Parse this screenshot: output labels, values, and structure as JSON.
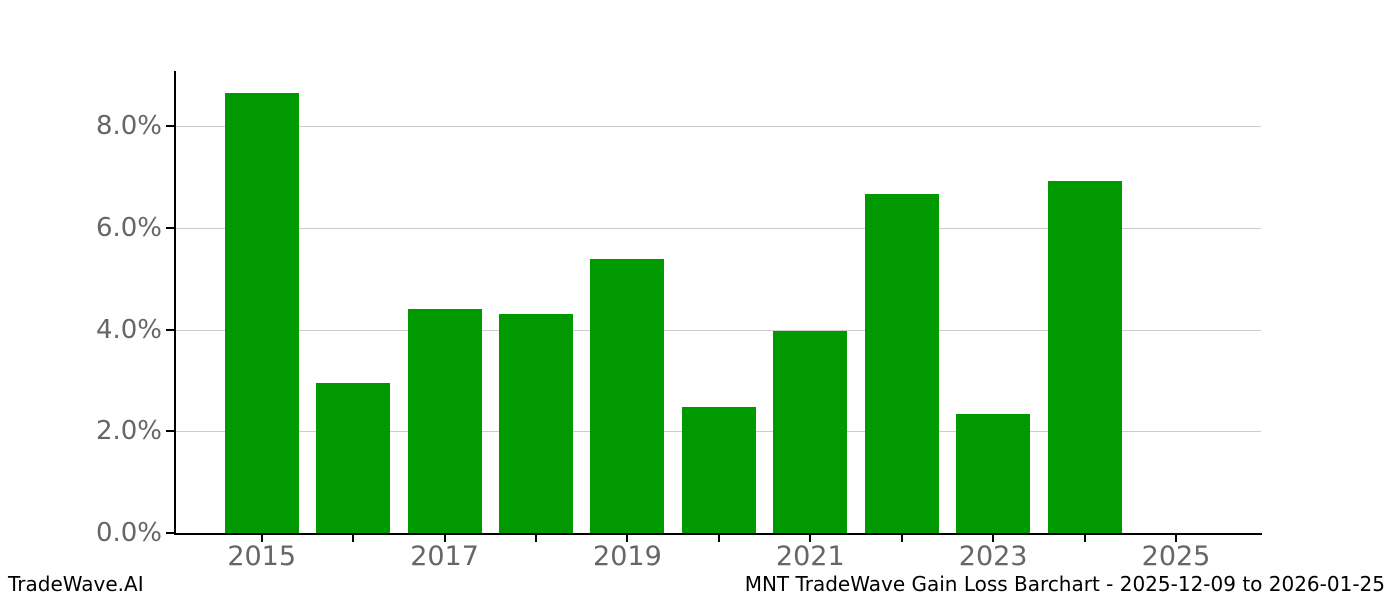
{
  "watermark": "TradeWave.AI",
  "footer_title": "MNT TradeWave Gain Loss Barchart - 2025-12-09 to 2026-01-25",
  "colors": {
    "bar": "#009900",
    "grid": "#cccccc",
    "axis": "#000000",
    "tick_label": "#666666",
    "text": "#000000",
    "background": "#ffffff"
  },
  "chart_data": {
    "type": "bar",
    "title": "MNT TradeWave Gain Loss Barchart - 2025-12-09 to 2026-01-25",
    "xlabel": "",
    "ylabel": "",
    "unit": "%",
    "categories": [
      "2015",
      "2016",
      "2017",
      "2018",
      "2019",
      "2020",
      "2021",
      "2022",
      "2023",
      "2024",
      "2025"
    ],
    "values": [
      8.65,
      2.96,
      4.41,
      4.31,
      5.39,
      2.47,
      3.97,
      6.67,
      2.35,
      6.93,
      null
    ],
    "x_tick_labels_shown": [
      "2015",
      "2017",
      "2019",
      "2021",
      "2023",
      "2025"
    ],
    "y_ticks": [
      {
        "value": 0,
        "label": "0.0%"
      },
      {
        "value": 2,
        "label": "2.0%"
      },
      {
        "value": 4,
        "label": "4.0%"
      },
      {
        "value": 6,
        "label": "6.0%"
      },
      {
        "value": 8,
        "label": "8.0%"
      }
    ],
    "ylim": [
      0,
      9.07
    ],
    "grid": "horizontal",
    "legend": "none",
    "bar_color": "#009900"
  }
}
